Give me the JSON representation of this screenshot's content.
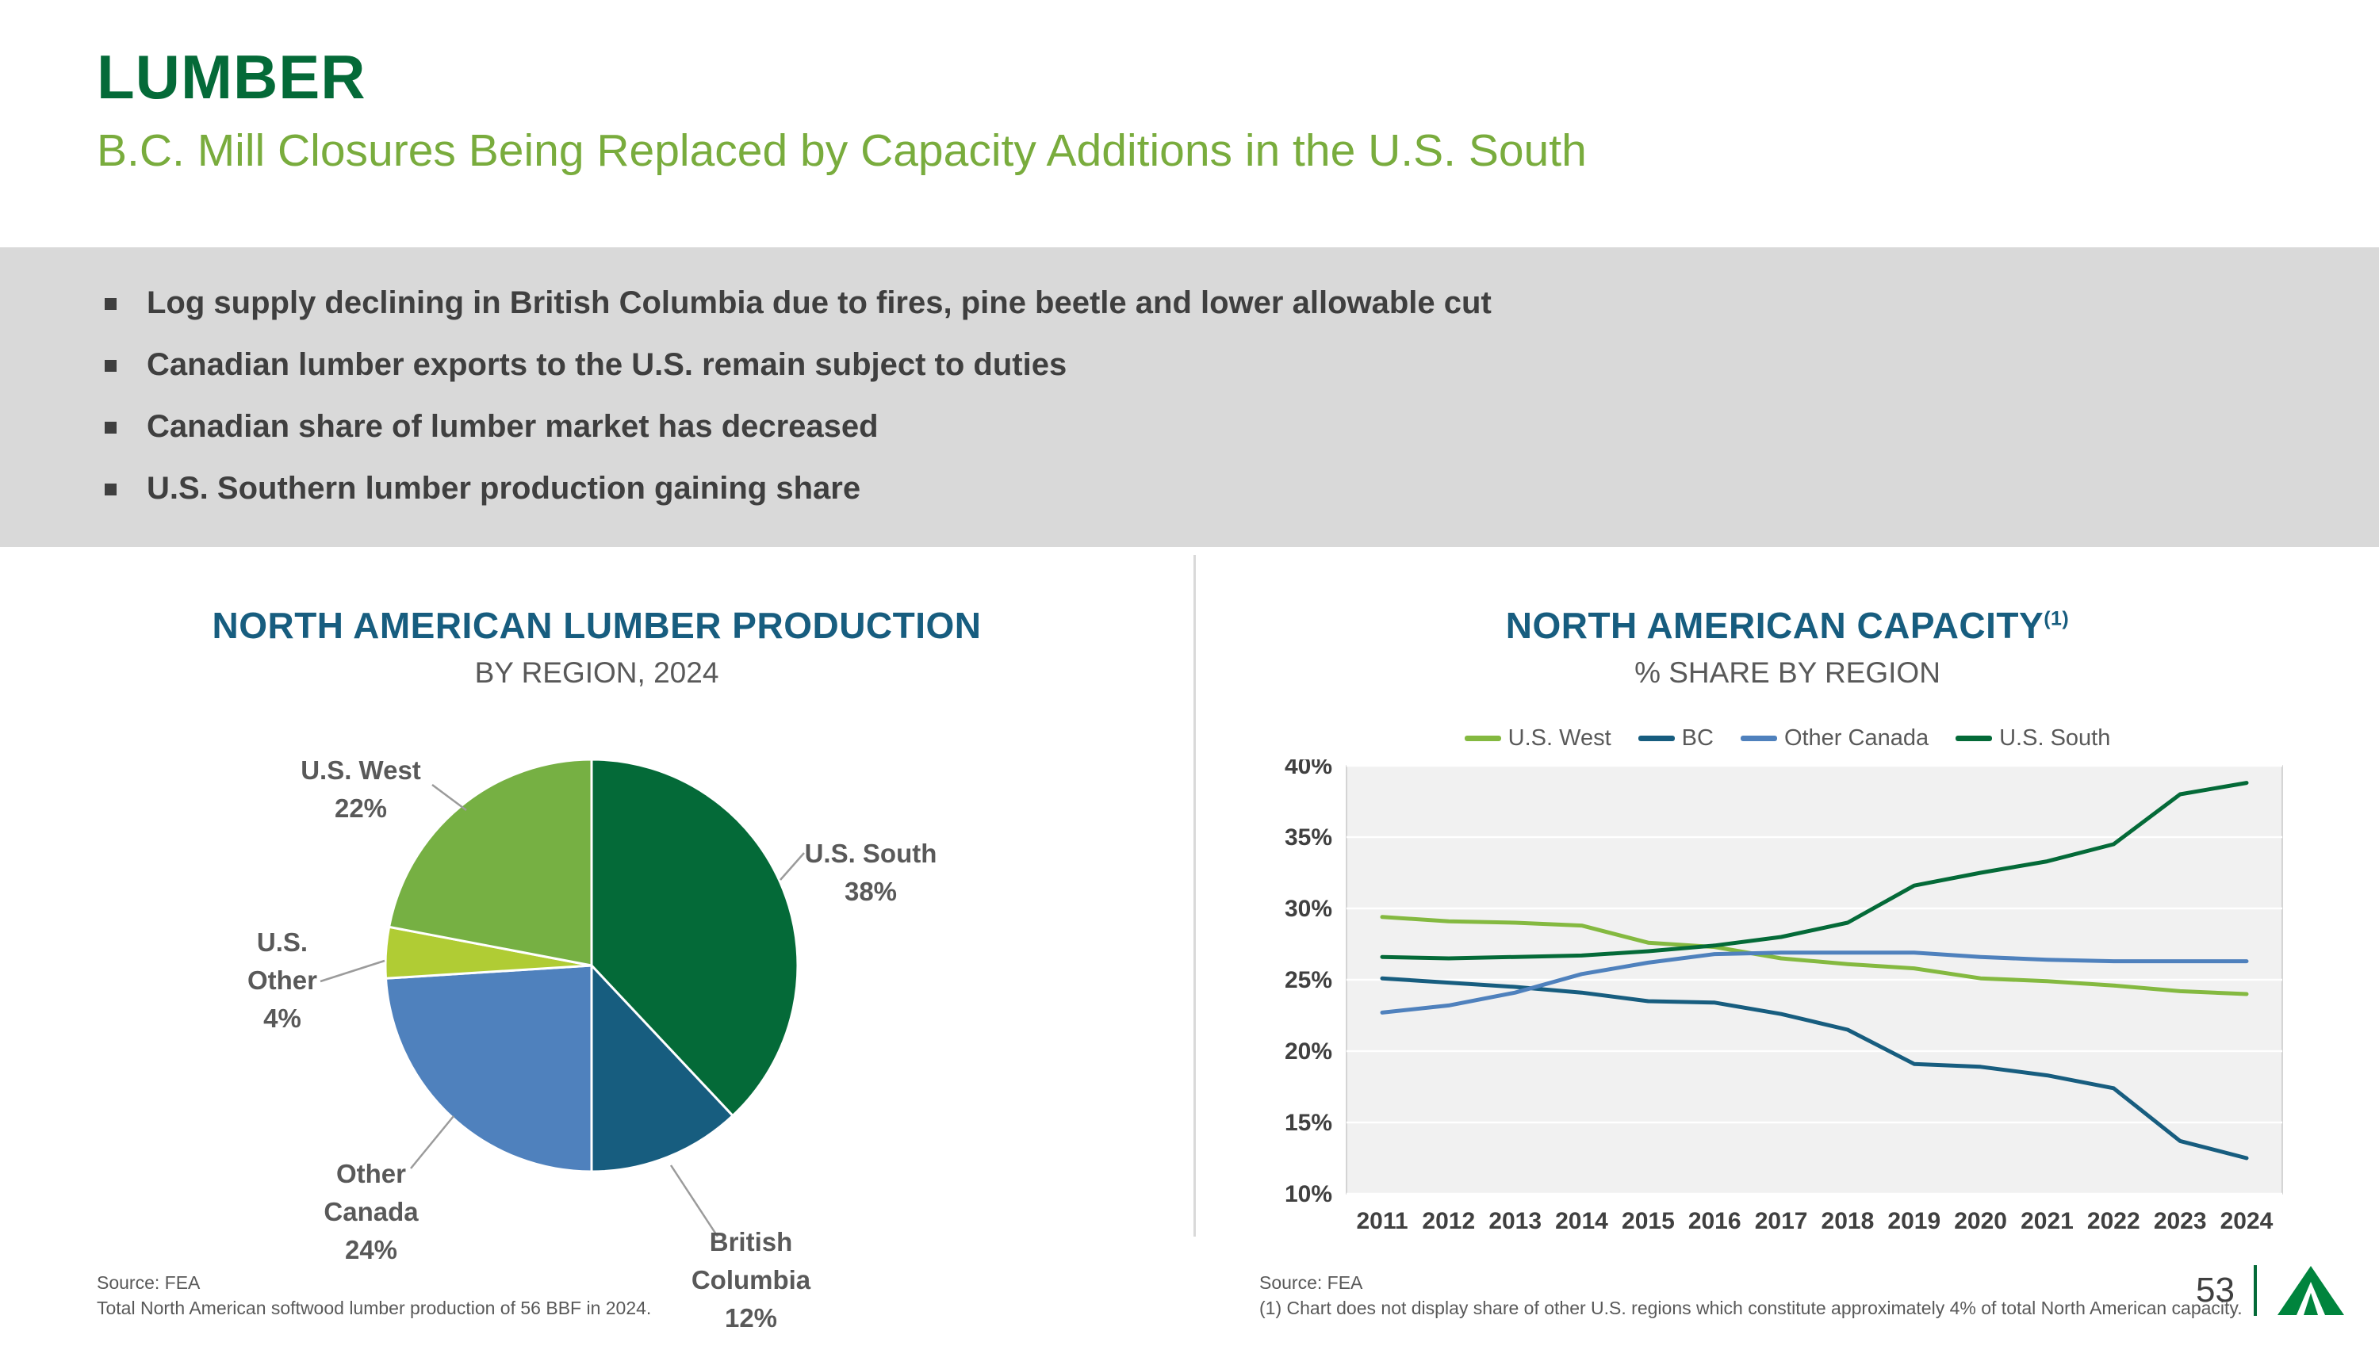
{
  "slide": {
    "title": "LUMBER",
    "subtitle": "B.C. Mill Closures Being Replaced by Capacity Additions in the U.S. South",
    "bullets": [
      "Log supply declining in British Columbia due to fires, pine beetle and lower allowable cut",
      "Canadian lumber exports to the U.S. remain subject to duties",
      "Canadian share of lumber market has decreased",
      "U.S. Southern lumber production gaining share"
    ],
    "page_number": "53"
  },
  "theme": {
    "title_green": "#046A38",
    "subtitle_green": "#79AC3D",
    "chart_title_blue": "#175D7F",
    "band_gray": "#D9D9D9",
    "text_gray": "#595959"
  },
  "sources": {
    "left": [
      "Source: FEA",
      "Total North American softwood lumber production of 56 BBF in 2024."
    ],
    "right": [
      "Source: FEA",
      "(1) Chart does not display share of other U.S. regions which constitute approximately 4% of total North American capacity."
    ]
  },
  "chart_data": [
    {
      "type": "pie",
      "title": "NORTH AMERICAN LUMBER PRODUCTION",
      "subtitle": "BY REGION, 2024",
      "slices": [
        {
          "label": "U.S. South",
          "value": 38,
          "color": "#046A38",
          "label_lines": [
            "U.S. South",
            "38%"
          ]
        },
        {
          "label": "British Columbia",
          "value": 12,
          "color": "#175D7F",
          "label_lines": [
            "British",
            "Columbia",
            "12%"
          ]
        },
        {
          "label": "Other Canada",
          "value": 24,
          "color": "#4F81BD",
          "label_lines": [
            "Other",
            "Canada",
            "24%"
          ]
        },
        {
          "label": "U.S. Other",
          "value": 4,
          "color": "#B0CC34",
          "label_lines": [
            "U.S.",
            "Other",
            "4%"
          ]
        },
        {
          "label": "U.S. West",
          "value": 22,
          "color": "#76B043",
          "label_lines": [
            "U.S. West",
            "22%"
          ]
        }
      ]
    },
    {
      "type": "line",
      "title": "NORTH AMERICAN CAPACITY",
      "title_sup": "(1)",
      "subtitle": "% SHARE BY REGION",
      "x": [
        2011,
        2012,
        2013,
        2014,
        2015,
        2016,
        2017,
        2018,
        2019,
        2020,
        2021,
        2022,
        2023,
        2024
      ],
      "ylim": [
        10,
        40
      ],
      "yticks": [
        10,
        15,
        20,
        25,
        30,
        35,
        40
      ],
      "ytick_suffix": "%",
      "legend_position": "top",
      "grid": true,
      "series": [
        {
          "name": "U.S. West",
          "color": "#84B940",
          "values": [
            29.4,
            29.1,
            29.0,
            28.8,
            27.6,
            27.3,
            26.5,
            26.1,
            25.8,
            25.1,
            24.9,
            24.6,
            24.2,
            24.0
          ]
        },
        {
          "name": "BC",
          "color": "#175D7F",
          "values": [
            25.1,
            24.8,
            24.5,
            24.1,
            23.5,
            23.4,
            22.6,
            21.5,
            19.1,
            18.9,
            18.3,
            17.4,
            13.7,
            12.5
          ]
        },
        {
          "name": "Other Canada",
          "color": "#4F81BD",
          "values": [
            22.7,
            23.2,
            24.1,
            25.4,
            26.2,
            26.8,
            26.9,
            26.9,
            26.9,
            26.6,
            26.4,
            26.3,
            26.3,
            26.3
          ]
        },
        {
          "name": "U.S. South",
          "color": "#046A38",
          "values": [
            26.6,
            26.5,
            26.6,
            26.7,
            27.0,
            27.4,
            28.0,
            29.0,
            31.6,
            32.5,
            33.3,
            34.5,
            38.0,
            38.8
          ]
        }
      ]
    }
  ]
}
